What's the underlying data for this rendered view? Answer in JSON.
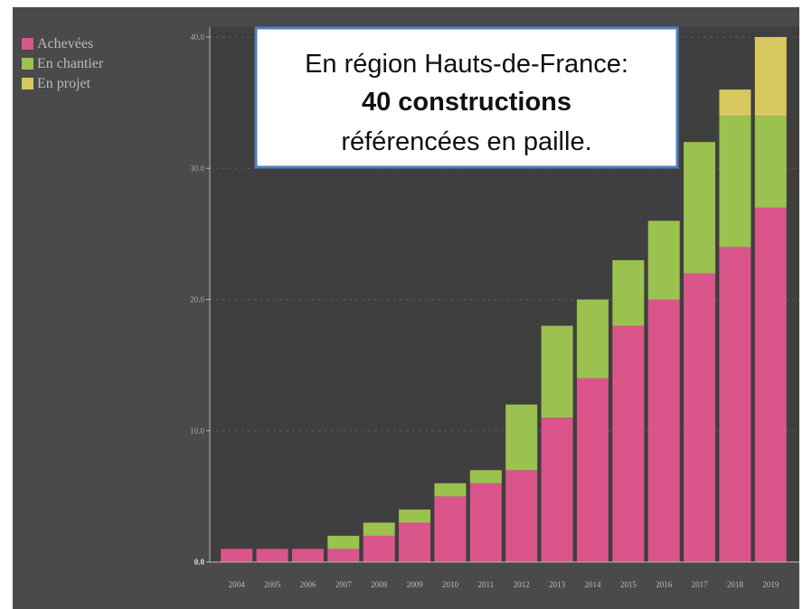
{
  "chart_data": {
    "type": "stacked-bar",
    "annotation": [
      "En région Hauts-de-France:",
      "40 constructions",
      "référencées en paille."
    ],
    "categories": [
      "2004",
      "2005",
      "2006",
      "2007",
      "2008",
      "2009",
      "2010",
      "2011",
      "2012",
      "2013",
      "2014",
      "2015",
      "2016",
      "2017",
      "2018",
      "2019"
    ],
    "series": [
      {
        "name": "Achevées",
        "color": "#d9558a",
        "values": [
          1,
          1,
          1,
          1,
          2,
          3,
          5,
          6,
          7,
          11,
          14,
          18,
          20,
          22,
          24,
          27
        ]
      },
      {
        "name": "En chantier",
        "color": "#9bc14f",
        "values": [
          0,
          0,
          0,
          1,
          1,
          1,
          1,
          1,
          5,
          7,
          6,
          5,
          6,
          10,
          10,
          7
        ]
      },
      {
        "name": "En projet",
        "color": "#d9c85f",
        "values": [
          0,
          0,
          0,
          0,
          0,
          0,
          0,
          0,
          0,
          0,
          0,
          0,
          0,
          0,
          2,
          6
        ]
      }
    ],
    "ylim": [
      0,
      40
    ],
    "yticks": [
      {
        "value": 0,
        "label": "0.0"
      },
      {
        "value": 10,
        "label": "10.0"
      },
      {
        "value": 20,
        "label": "20.0"
      },
      {
        "value": 30,
        "label": "30.0"
      },
      {
        "value": 40,
        "label": "40.0"
      }
    ],
    "grid": true,
    "legend": "top-left"
  }
}
